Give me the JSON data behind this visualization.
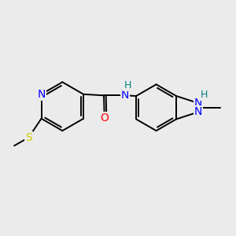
{
  "background_color": "#ebebeb",
  "bond_color": "#000000",
  "atom_colors": {
    "N": "#0000ff",
    "O": "#ff0000",
    "S": "#cccc00",
    "NH": "#008080",
    "C": "#000000",
    "H": "#000000"
  },
  "figsize": [
    3.0,
    3.0
  ],
  "dpi": 100
}
